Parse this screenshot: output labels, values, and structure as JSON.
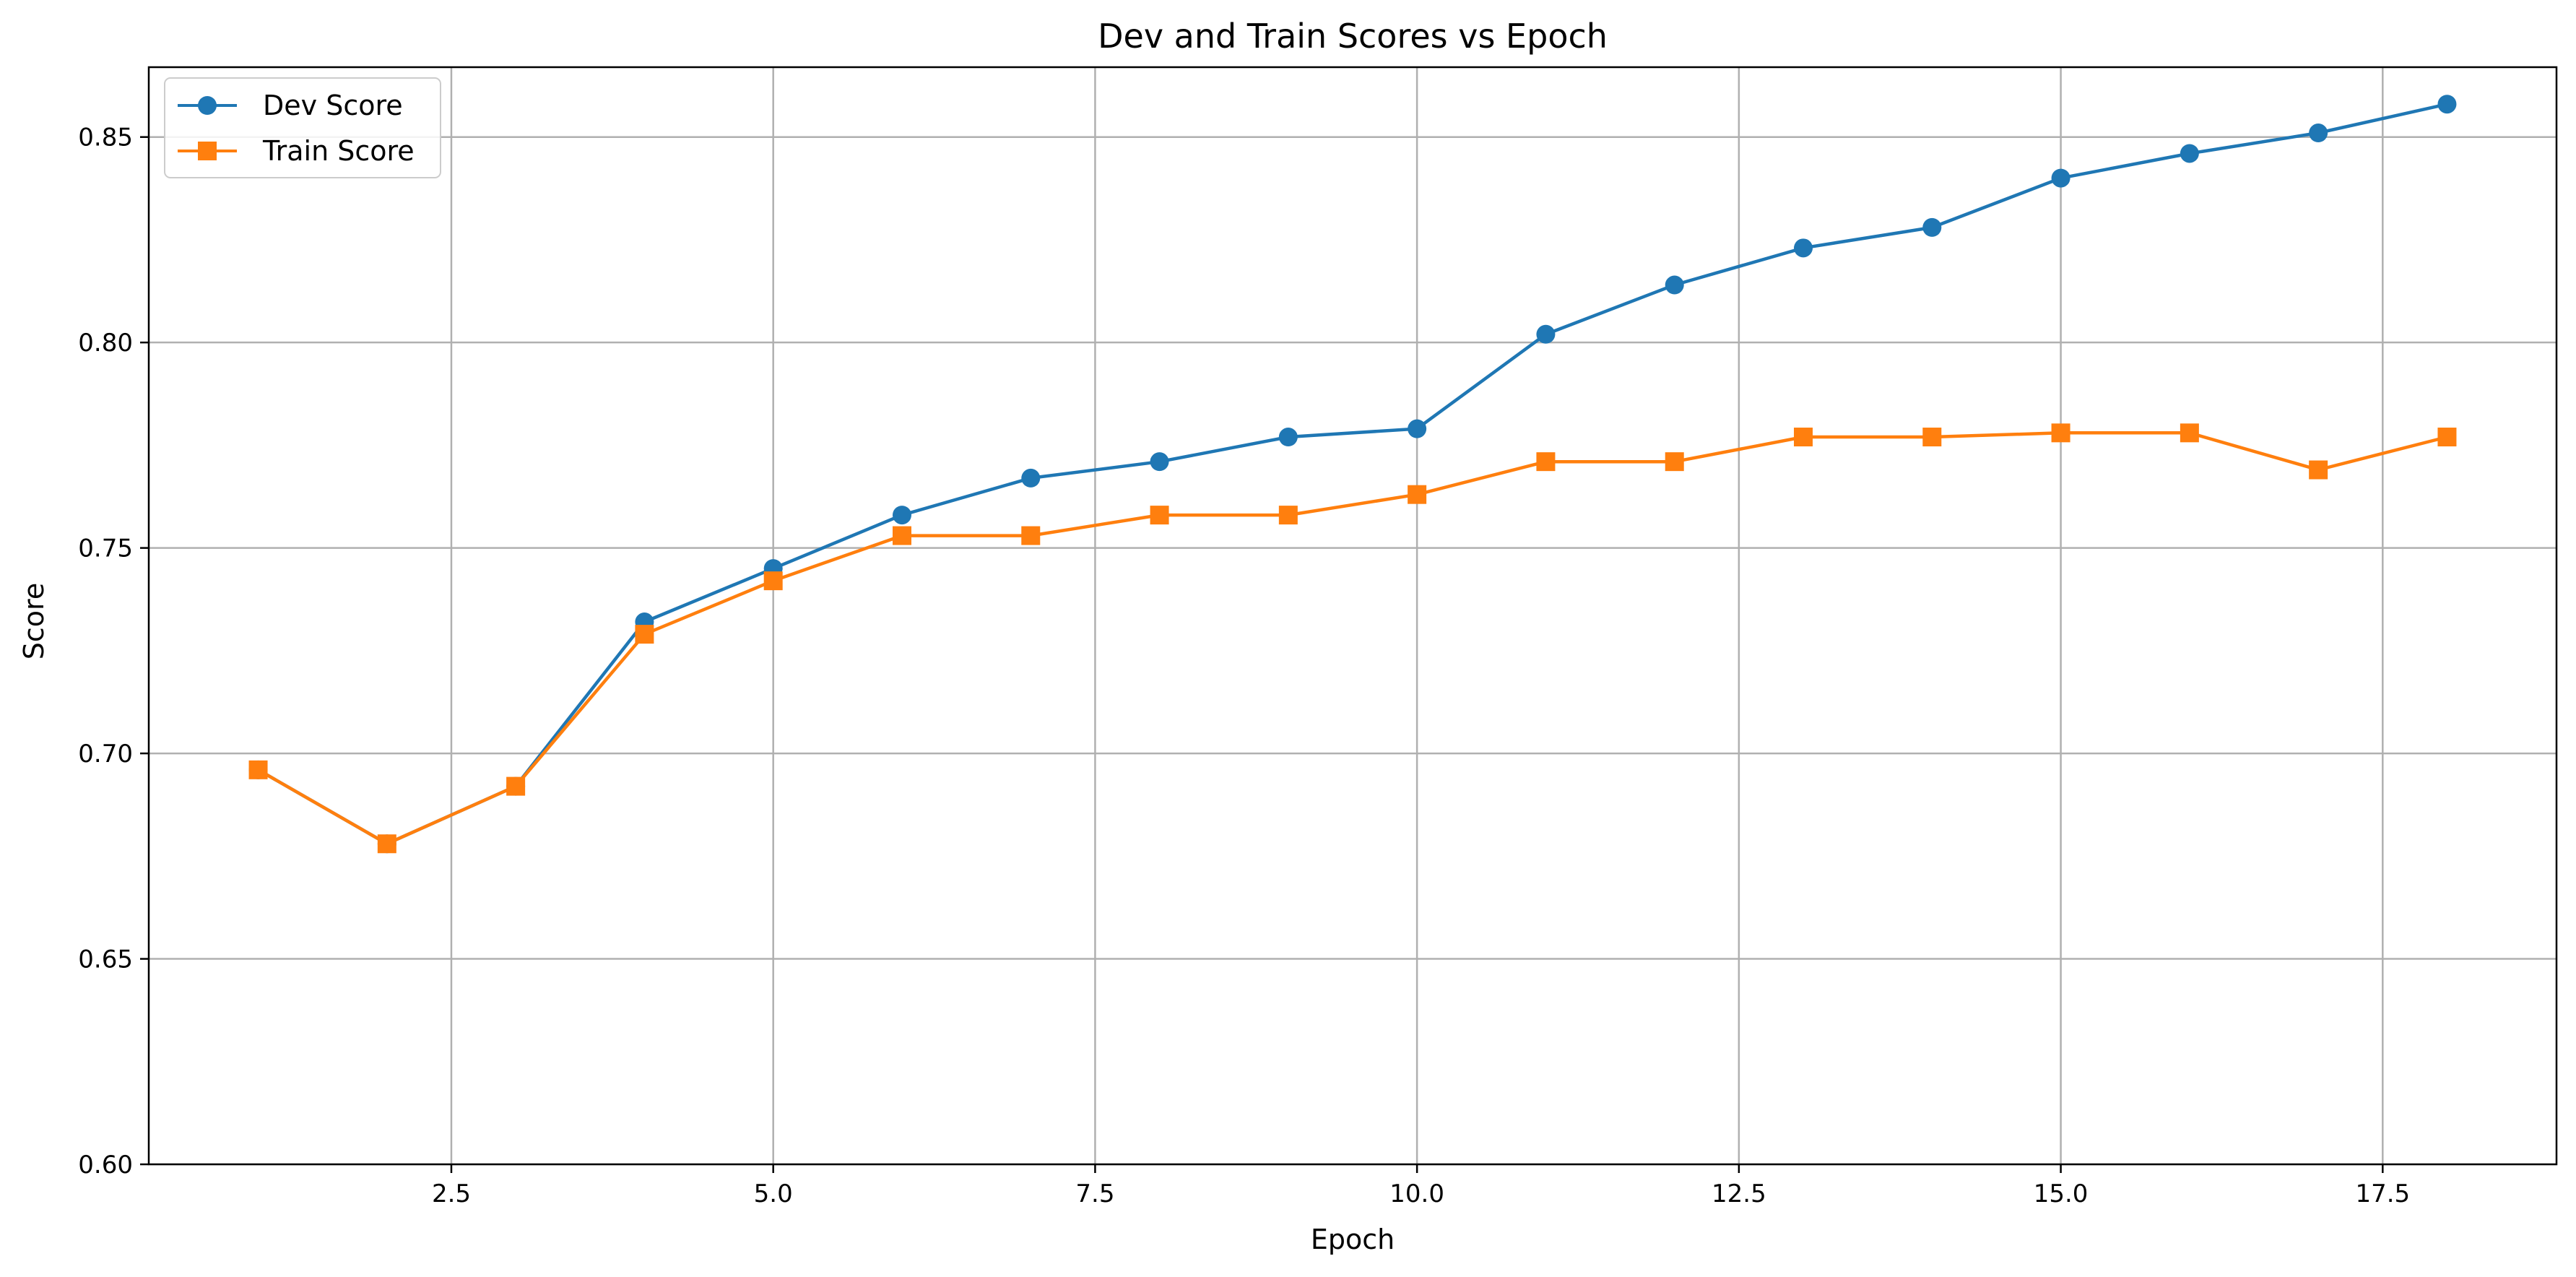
{
  "chart_data": {
    "type": "line",
    "title": "Dev and Train Scores vs Epoch",
    "xlabel": "Epoch",
    "ylabel": "Score",
    "xlim": [
      0.15,
      18.85
    ],
    "ylim": [
      0.6,
      0.867
    ],
    "xticks": [
      2.5,
      5.0,
      7.5,
      10.0,
      12.5,
      15.0,
      17.5
    ],
    "xtick_labels": [
      "2.5",
      "5.0",
      "7.5",
      "10.0",
      "12.5",
      "15.0",
      "17.5"
    ],
    "yticks": [
      0.6,
      0.65,
      0.7,
      0.75,
      0.8,
      0.85
    ],
    "ytick_labels": [
      "0.60",
      "0.65",
      "0.70",
      "0.75",
      "0.80",
      "0.85"
    ],
    "grid": true,
    "legend_position": "top-left",
    "x": [
      1,
      2,
      3,
      4,
      5,
      6,
      7,
      8,
      9,
      10,
      11,
      12,
      13,
      14,
      15,
      16,
      17,
      18
    ],
    "series": [
      {
        "name": "Dev Score",
        "color": "#1f77b4",
        "marker": "circle",
        "values": [
          0.696,
          0.678,
          0.692,
          0.732,
          0.745,
          0.758,
          0.767,
          0.771,
          0.777,
          0.779,
          0.802,
          0.814,
          0.823,
          0.828,
          0.84,
          0.846,
          0.851,
          0.858
        ]
      },
      {
        "name": "Train Score",
        "color": "#ff7f0e",
        "marker": "square",
        "values": [
          0.696,
          0.678,
          0.692,
          0.729,
          0.742,
          0.753,
          0.753,
          0.758,
          0.758,
          0.763,
          0.771,
          0.771,
          0.777,
          0.777,
          0.778,
          0.778,
          0.769,
          0.777
        ]
      }
    ]
  }
}
